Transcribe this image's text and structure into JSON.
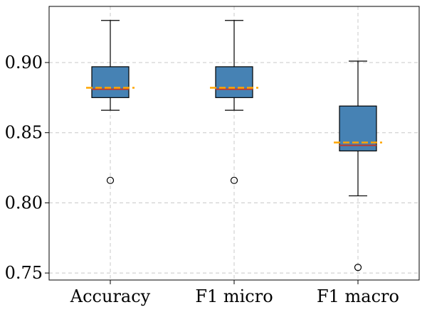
{
  "chart_data": {
    "type": "box",
    "categories": [
      "Accuracy",
      "F1 micro",
      "F1 macro"
    ],
    "ylim": [
      0.745,
      0.94
    ],
    "yticks": [
      0.75,
      0.8,
      0.85,
      0.9
    ],
    "ytick_labels": [
      "0.75",
      "0.80",
      "0.85",
      "0.90"
    ],
    "grid": true,
    "series": [
      {
        "name": "Accuracy",
        "whisker_low": 0.866,
        "q1": 0.875,
        "median": 0.881,
        "q3": 0.897,
        "whisker_high": 0.93,
        "mean": 0.882,
        "outliers": [
          0.816
        ]
      },
      {
        "name": "F1 micro",
        "whisker_low": 0.866,
        "q1": 0.875,
        "median": 0.881,
        "q3": 0.897,
        "whisker_high": 0.93,
        "mean": 0.882,
        "outliers": [
          0.816
        ]
      },
      {
        "name": "F1 macro",
        "whisker_low": 0.805,
        "q1": 0.837,
        "median": 0.841,
        "q3": 0.869,
        "whisker_high": 0.901,
        "mean": 0.843,
        "outliers": [
          0.754
        ]
      }
    ],
    "colors": {
      "box_fill": "#4682b4",
      "box_edge": "#000000",
      "median": "#c0392b",
      "mean": "#ffa500",
      "grid": "#c8c8c8"
    }
  }
}
